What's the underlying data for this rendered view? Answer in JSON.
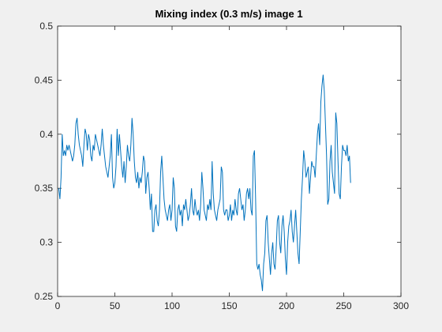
{
  "chart_data": {
    "type": "line",
    "title": "Mixing index (0.3 m/s) image 1",
    "x": [
      1,
      2,
      3,
      4,
      5,
      6,
      7,
      8,
      9,
      10,
      11,
      12,
      13,
      14,
      15,
      16,
      17,
      18,
      19,
      20,
      21,
      22,
      23,
      24,
      25,
      26,
      27,
      28,
      29,
      30,
      31,
      32,
      33,
      34,
      35,
      36,
      37,
      38,
      39,
      40,
      41,
      42,
      43,
      44,
      45,
      46,
      47,
      48,
      49,
      50,
      51,
      52,
      53,
      54,
      55,
      56,
      57,
      58,
      59,
      60,
      61,
      62,
      63,
      64,
      65,
      66,
      67,
      68,
      69,
      70,
      71,
      72,
      73,
      74,
      75,
      76,
      77,
      78,
      79,
      80,
      81,
      82,
      83,
      84,
      85,
      86,
      87,
      88,
      89,
      90,
      91,
      92,
      93,
      94,
      95,
      96,
      97,
      98,
      99,
      100,
      101,
      102,
      103,
      104,
      105,
      106,
      107,
      108,
      109,
      110,
      111,
      112,
      113,
      114,
      115,
      116,
      117,
      118,
      119,
      120,
      121,
      122,
      123,
      124,
      125,
      126,
      127,
      128,
      129,
      130,
      131,
      132,
      133,
      134,
      135,
      136,
      137,
      138,
      139,
      140,
      141,
      142,
      143,
      144,
      145,
      146,
      147,
      148,
      149,
      150,
      151,
      152,
      153,
      154,
      155,
      156,
      157,
      158,
      159,
      160,
      161,
      162,
      163,
      164,
      165,
      166,
      167,
      168,
      169,
      170,
      171,
      172,
      173,
      174,
      175,
      176,
      177,
      178,
      179,
      180,
      181,
      182,
      183,
      184,
      185,
      186,
      187,
      188,
      189,
      190,
      191,
      192,
      193,
      194,
      195,
      196,
      197,
      198,
      199,
      200,
      201,
      202,
      203,
      204,
      205,
      206,
      207,
      208,
      209,
      210,
      211,
      212,
      213,
      214,
      215,
      216,
      217,
      218,
      219,
      220,
      221,
      222,
      223,
      224,
      225,
      226,
      227,
      228,
      229,
      230,
      231,
      232,
      233,
      234,
      235,
      236,
      237,
      238,
      239,
      240,
      241,
      242,
      243,
      244,
      245,
      246,
      247,
      248,
      249,
      250,
      251,
      252,
      253,
      254,
      255,
      256
    ],
    "series": [
      {
        "color": "#0072bd",
        "values": [
          0.35,
          0.34,
          0.36,
          0.4,
          0.38,
          0.385,
          0.38,
          0.39,
          0.385,
          0.39,
          0.385,
          0.38,
          0.375,
          0.38,
          0.39,
          0.41,
          0.415,
          0.4,
          0.39,
          0.385,
          0.38,
          0.37,
          0.39,
          0.405,
          0.4,
          0.385,
          0.4,
          0.395,
          0.38,
          0.375,
          0.39,
          0.385,
          0.4,
          0.395,
          0.39,
          0.385,
          0.38,
          0.39,
          0.405,
          0.39,
          0.38,
          0.37,
          0.365,
          0.36,
          0.37,
          0.38,
          0.4,
          0.36,
          0.35,
          0.355,
          0.37,
          0.405,
          0.38,
          0.4,
          0.385,
          0.37,
          0.36,
          0.375,
          0.355,
          0.37,
          0.39,
          0.38,
          0.375,
          0.39,
          0.415,
          0.4,
          0.375,
          0.36,
          0.355,
          0.365,
          0.35,
          0.36,
          0.355,
          0.365,
          0.38,
          0.375,
          0.345,
          0.36,
          0.365,
          0.35,
          0.33,
          0.345,
          0.31,
          0.31,
          0.33,
          0.335,
          0.32,
          0.315,
          0.33,
          0.365,
          0.38,
          0.36,
          0.34,
          0.33,
          0.325,
          0.32,
          0.33,
          0.335,
          0.32,
          0.33,
          0.36,
          0.35,
          0.315,
          0.31,
          0.33,
          0.335,
          0.325,
          0.33,
          0.315,
          0.335,
          0.33,
          0.34,
          0.33,
          0.32,
          0.325,
          0.335,
          0.35,
          0.33,
          0.325,
          0.34,
          0.33,
          0.325,
          0.33,
          0.32,
          0.335,
          0.365,
          0.35,
          0.33,
          0.325,
          0.32,
          0.335,
          0.33,
          0.34,
          0.33,
          0.375,
          0.345,
          0.33,
          0.325,
          0.32,
          0.33,
          0.335,
          0.34,
          0.37,
          0.365,
          0.33,
          0.325,
          0.33,
          0.33,
          0.32,
          0.325,
          0.335,
          0.32,
          0.33,
          0.325,
          0.34,
          0.33,
          0.325,
          0.345,
          0.35,
          0.34,
          0.33,
          0.335,
          0.32,
          0.33,
          0.345,
          0.35,
          0.34,
          0.35,
          0.33,
          0.325,
          0.38,
          0.385,
          0.34,
          0.28,
          0.275,
          0.28,
          0.27,
          0.265,
          0.255,
          0.28,
          0.29,
          0.32,
          0.325,
          0.3,
          0.285,
          0.27,
          0.29,
          0.3,
          0.28,
          0.275,
          0.295,
          0.32,
          0.325,
          0.3,
          0.29,
          0.315,
          0.325,
          0.31,
          0.285,
          0.27,
          0.3,
          0.315,
          0.32,
          0.33,
          0.31,
          0.3,
          0.315,
          0.33,
          0.31,
          0.29,
          0.28,
          0.31,
          0.34,
          0.36,
          0.385,
          0.375,
          0.36,
          0.365,
          0.37,
          0.345,
          0.36,
          0.375,
          0.37,
          0.37,
          0.36,
          0.38,
          0.4,
          0.41,
          0.39,
          0.43,
          0.445,
          0.455,
          0.44,
          0.41,
          0.38,
          0.335,
          0.34,
          0.375,
          0.39,
          0.365,
          0.355,
          0.345,
          0.42,
          0.41,
          0.375,
          0.345,
          0.34,
          0.37,
          0.39,
          0.385,
          0.385,
          0.38,
          0.39,
          0.375,
          0.38,
          0.355
        ]
      }
    ],
    "xlim": [
      0,
      300
    ],
    "xticks": [
      0,
      50,
      100,
      150,
      200,
      250,
      300
    ],
    "ylim": [
      0.25,
      0.5
    ],
    "yticks": [
      0.25,
      0.3,
      0.35,
      0.4,
      0.45,
      0.5
    ]
  }
}
